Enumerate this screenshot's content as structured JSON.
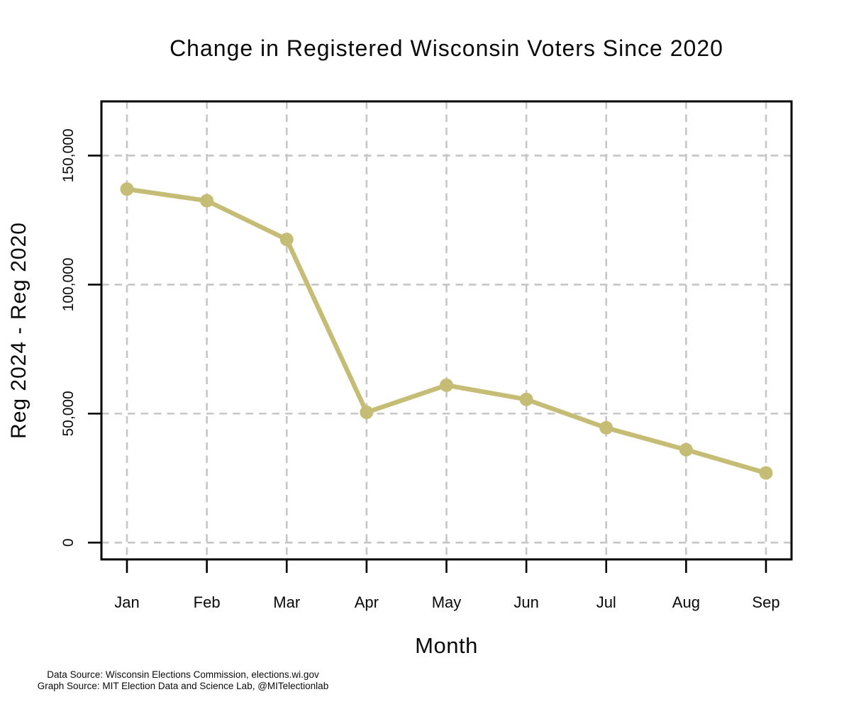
{
  "footer": {
    "line1": "Data Source: Wisconsin Elections Commission, elections.wi.gov",
    "line2": "Graph Source: MIT Election Data and Science Lab, @MITelectionlab"
  },
  "chart_data": {
    "type": "line",
    "title": "Change in Registered Wisconsin Voters Since 2020",
    "xlabel": "Month",
    "ylabel": "Reg 2024 - Reg 2020",
    "categories": [
      "Jan",
      "Feb",
      "Mar",
      "Apr",
      "May",
      "Jun",
      "Jul",
      "Aug",
      "Sep"
    ],
    "values": [
      137000,
      132500,
      117500,
      50500,
      61000,
      55500,
      44500,
      36000,
      27000
    ],
    "y_ticks": [
      0,
      50000,
      100000,
      150000
    ],
    "y_tick_labels": [
      "0",
      "50,000",
      "100,000",
      "150,000"
    ],
    "ylim": [
      -6500,
      171000
    ],
    "grid": "dashed-both-axes",
    "legend": "none",
    "marker": "circle",
    "colors": {
      "series": "#c5bc75",
      "grid": "#c6c6c6",
      "frame": "#000000",
      "text": "#0a0a0a",
      "background": "#ffffff"
    }
  }
}
